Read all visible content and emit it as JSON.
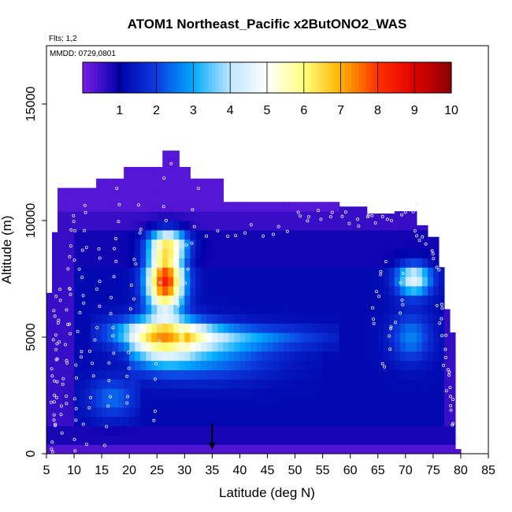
{
  "chart_data": {
    "type": "heatmap",
    "title": "ATOM1 Northeast_Pacific x2ButONO2_WAS",
    "flights_label": "Flts: 1,2",
    "date_label": "MMDD: 0729,0801",
    "xlabel": "Latitude (deg N)",
    "ylabel": "Altitude (m)",
    "xlim": [
      5,
      85
    ],
    "ylim": [
      0,
      17500
    ],
    "xticks": [
      "5",
      "10",
      "15",
      "20",
      "25",
      "30",
      "35",
      "40",
      "45",
      "50",
      "55",
      "60",
      "65",
      "70",
      "75",
      "80",
      "85"
    ],
    "yticks": [
      "0",
      "5000",
      "10000",
      "15000"
    ],
    "colorbar": {
      "range": [
        0,
        10
      ],
      "ticks": [
        "1",
        "2",
        "3",
        "4",
        "5",
        "6",
        "7",
        "8",
        "9",
        "10"
      ],
      "placement": "top"
    },
    "grid": false,
    "marker": {
      "type": "arrow",
      "x": 35,
      "y": 200
    },
    "colors": {
      "c0": "#7a1fe8",
      "c1": "#0000a8",
      "c2": "#0c3ce0",
      "c3": "#00aaff",
      "c4": "#bfe6ff",
      "c5": "#ffffff",
      "c6": "#ffff80",
      "c7": "#ffb300",
      "c8": "#ff3000",
      "c9": "#e00000",
      "c10": "#8b0000"
    }
  }
}
